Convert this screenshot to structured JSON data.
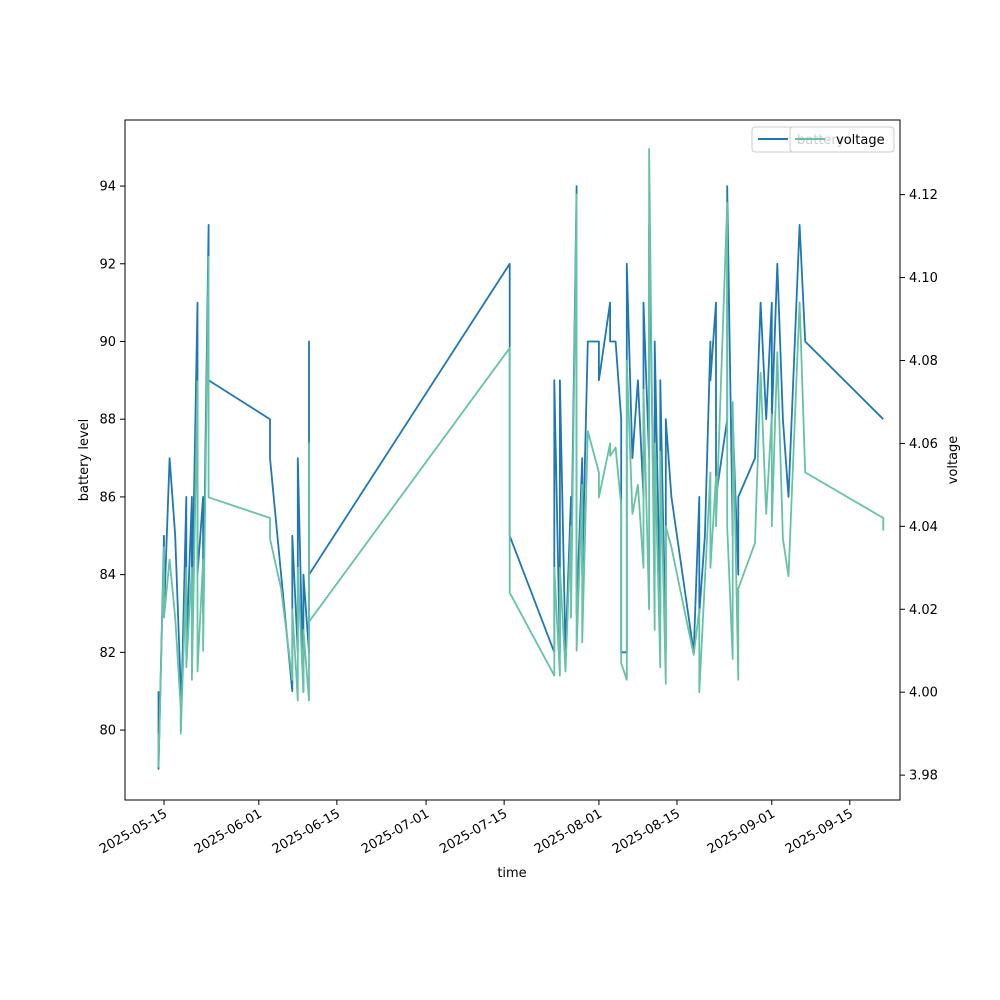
{
  "chart_data": {
    "type": "line",
    "xlabel": "time",
    "ylabel": "battery level",
    "y2label": "voltage",
    "xlim": [
      "2025-05-08",
      "2025-09-24"
    ],
    "ylim": [
      78.2,
      95.7
    ],
    "y2lim": [
      3.974,
      4.138
    ],
    "x_ticks": [
      "2025-05-15",
      "2025-06-01",
      "2025-06-15",
      "2025-07-01",
      "2025-07-15",
      "2025-08-01",
      "2025-08-15",
      "2025-09-01",
      "2025-09-15"
    ],
    "y_ticks": [
      "80",
      "82",
      "84",
      "86",
      "88",
      "90",
      "92",
      "94"
    ],
    "y2_ticks": [
      "3.98",
      "4.00",
      "4.02",
      "4.04",
      "4.06",
      "4.08",
      "4.10",
      "4.12"
    ],
    "legend_position": "upper right (two overlapping legends)",
    "series": [
      {
        "name": "battery",
        "axis": "left",
        "color": "#1f77b4",
        "points": [
          [
            "2025-05-14",
            81
          ],
          [
            "2025-05-14",
            79
          ],
          [
            "2025-05-15",
            85
          ],
          [
            "2025-05-15",
            83
          ],
          [
            "2025-05-16",
            87
          ],
          [
            "2025-05-17",
            85
          ],
          [
            "2025-05-18",
            81
          ],
          [
            "2025-05-18",
            80
          ],
          [
            "2025-05-19",
            86
          ],
          [
            "2025-05-19",
            82
          ],
          [
            "2025-05-20",
            86
          ],
          [
            "2025-05-20",
            83
          ],
          [
            "2025-05-21",
            91
          ],
          [
            "2025-05-21",
            84
          ],
          [
            "2025-05-22",
            86
          ],
          [
            "2025-05-22",
            83
          ],
          [
            "2025-05-23",
            93
          ],
          [
            "2025-05-23",
            89
          ],
          [
            "2025-06-03",
            88
          ],
          [
            "2025-06-03",
            87
          ],
          [
            "2025-06-05",
            84
          ],
          [
            "2025-06-07",
            81
          ],
          [
            "2025-06-07",
            85
          ],
          [
            "2025-06-08",
            82
          ],
          [
            "2025-06-08",
            87
          ],
          [
            "2025-06-09",
            81
          ],
          [
            "2025-06-09",
            84
          ],
          [
            "2025-06-10",
            82
          ],
          [
            "2025-06-10",
            90
          ],
          [
            "2025-06-10",
            84
          ],
          [
            "2025-07-16",
            92
          ],
          [
            "2025-07-16",
            85
          ],
          [
            "2025-07-24",
            82
          ],
          [
            "2025-07-24",
            89
          ],
          [
            "2025-07-25",
            82
          ],
          [
            "2025-07-25",
            89
          ],
          [
            "2025-07-26",
            82
          ],
          [
            "2025-07-27",
            86
          ],
          [
            "2025-07-27",
            84
          ],
          [
            "2025-07-28",
            94
          ],
          [
            "2025-07-28",
            83
          ],
          [
            "2025-07-29",
            87
          ],
          [
            "2025-07-29",
            84
          ],
          [
            "2025-07-30",
            90
          ],
          [
            "2025-08-01",
            90
          ],
          [
            "2025-08-01",
            89
          ],
          [
            "2025-08-03",
            91
          ],
          [
            "2025-08-03",
            90
          ],
          [
            "2025-08-04",
            90
          ],
          [
            "2025-08-05",
            88
          ],
          [
            "2025-08-05",
            82
          ],
          [
            "2025-08-06",
            82
          ],
          [
            "2025-08-06",
            92
          ],
          [
            "2025-08-07",
            87
          ],
          [
            "2025-08-08",
            89
          ],
          [
            "2025-08-09",
            86
          ],
          [
            "2025-08-09",
            91
          ],
          [
            "2025-08-10",
            87
          ],
          [
            "2025-08-10",
            93
          ],
          [
            "2025-08-11",
            84
          ],
          [
            "2025-08-11",
            90
          ],
          [
            "2025-08-12",
            83
          ],
          [
            "2025-08-12",
            89
          ],
          [
            "2025-08-13",
            82
          ],
          [
            "2025-08-13",
            88
          ],
          [
            "2025-08-14",
            86
          ],
          [
            "2025-08-18",
            82
          ],
          [
            "2025-08-19",
            86
          ],
          [
            "2025-08-19",
            83
          ],
          [
            "2025-08-20",
            85
          ],
          [
            "2025-08-21",
            90
          ],
          [
            "2025-08-21",
            89
          ],
          [
            "2025-08-22",
            91
          ],
          [
            "2025-08-22",
            86
          ],
          [
            "2025-08-24",
            88
          ],
          [
            "2025-08-24",
            94
          ],
          [
            "2025-08-25",
            85
          ],
          [
            "2025-08-25",
            88
          ],
          [
            "2025-08-26",
            84
          ],
          [
            "2025-08-26",
            86
          ],
          [
            "2025-08-29",
            87
          ],
          [
            "2025-08-30",
            91
          ],
          [
            "2025-08-31",
            88
          ],
          [
            "2025-09-01",
            91
          ],
          [
            "2025-09-01",
            88
          ],
          [
            "2025-09-02",
            92
          ],
          [
            "2025-09-03",
            88
          ],
          [
            "2025-09-04",
            86
          ],
          [
            "2025-09-06",
            93
          ],
          [
            "2025-09-07",
            90
          ],
          [
            "2025-09-21",
            88
          ]
        ]
      },
      {
        "name": "voltage",
        "axis": "right",
        "color": "#66c2a5",
        "points": [
          [
            "2025-05-14",
            3.99
          ],
          [
            "2025-05-14",
            3.982
          ],
          [
            "2025-05-15",
            4.035
          ],
          [
            "2025-05-15",
            4.018
          ],
          [
            "2025-05-16",
            4.032
          ],
          [
            "2025-05-17",
            4.018
          ],
          [
            "2025-05-18",
            3.996
          ],
          [
            "2025-05-18",
            3.99
          ],
          [
            "2025-05-19",
            4.03
          ],
          [
            "2025-05-19",
            4.006
          ],
          [
            "2025-05-20",
            4.03
          ],
          [
            "2025-05-20",
            4.003
          ],
          [
            "2025-05-21",
            4.075
          ],
          [
            "2025-05-21",
            4.005
          ],
          [
            "2025-05-22",
            4.032
          ],
          [
            "2025-05-22",
            4.01
          ],
          [
            "2025-05-23",
            4.105
          ],
          [
            "2025-05-23",
            4.047
          ],
          [
            "2025-06-03",
            4.042
          ],
          [
            "2025-06-03",
            4.037
          ],
          [
            "2025-06-05",
            4.025
          ],
          [
            "2025-06-07",
            4.003
          ],
          [
            "2025-06-07",
            4.02
          ],
          [
            "2025-06-08",
            3.998
          ],
          [
            "2025-06-08",
            4.03
          ],
          [
            "2025-06-09",
            4.0
          ],
          [
            "2025-06-09",
            4.015
          ],
          [
            "2025-06-10",
            3.998
          ],
          [
            "2025-06-10",
            4.06
          ],
          [
            "2025-06-10",
            4.017
          ],
          [
            "2025-07-16",
            4.083
          ],
          [
            "2025-07-16",
            4.024
          ],
          [
            "2025-07-24",
            4.004
          ],
          [
            "2025-07-24",
            4.03
          ],
          [
            "2025-07-25",
            4.004
          ],
          [
            "2025-07-25",
            4.03
          ],
          [
            "2025-07-26",
            4.005
          ],
          [
            "2025-07-27",
            4.04
          ],
          [
            "2025-07-27",
            4.018
          ],
          [
            "2025-07-28",
            4.12
          ],
          [
            "2025-07-28",
            4.01
          ],
          [
            "2025-07-29",
            4.05
          ],
          [
            "2025-07-29",
            4.012
          ],
          [
            "2025-07-30",
            4.063
          ],
          [
            "2025-08-01",
            4.053
          ],
          [
            "2025-08-01",
            4.047
          ],
          [
            "2025-08-03",
            4.06
          ],
          [
            "2025-08-03",
            4.057
          ],
          [
            "2025-08-04",
            4.059
          ],
          [
            "2025-08-05",
            4.045
          ],
          [
            "2025-08-05",
            4.007
          ],
          [
            "2025-08-06",
            4.003
          ],
          [
            "2025-08-06",
            4.08
          ],
          [
            "2025-08-07",
            4.043
          ],
          [
            "2025-08-08",
            4.05
          ],
          [
            "2025-08-09",
            4.03
          ],
          [
            "2025-08-09",
            4.073
          ],
          [
            "2025-08-10",
            4.02
          ],
          [
            "2025-08-10",
            4.131
          ],
          [
            "2025-08-11",
            4.015
          ],
          [
            "2025-08-11",
            4.06
          ],
          [
            "2025-08-12",
            4.006
          ],
          [
            "2025-08-12",
            4.058
          ],
          [
            "2025-08-13",
            4.002
          ],
          [
            "2025-08-13",
            4.04
          ],
          [
            "2025-08-14",
            4.035
          ],
          [
            "2025-08-18",
            4.009
          ],
          [
            "2025-08-19",
            4.02
          ],
          [
            "2025-08-19",
            4.0
          ],
          [
            "2025-08-20",
            4.027
          ],
          [
            "2025-08-21",
            4.053
          ],
          [
            "2025-08-21",
            4.03
          ],
          [
            "2025-08-22",
            4.052
          ],
          [
            "2025-08-22",
            4.04
          ],
          [
            "2025-08-24",
            4.118
          ],
          [
            "2025-08-24",
            4.04
          ],
          [
            "2025-08-25",
            4.008
          ],
          [
            "2025-08-25",
            4.07
          ],
          [
            "2025-08-26",
            4.003
          ],
          [
            "2025-08-26",
            4.025
          ],
          [
            "2025-08-29",
            4.036
          ],
          [
            "2025-08-30",
            4.077
          ],
          [
            "2025-08-31",
            4.043
          ],
          [
            "2025-09-01",
            4.067
          ],
          [
            "2025-09-01",
            4.04
          ],
          [
            "2025-09-02",
            4.082
          ],
          [
            "2025-09-03",
            4.037
          ],
          [
            "2025-09-04",
            4.028
          ],
          [
            "2025-09-06",
            4.094
          ],
          [
            "2025-09-07",
            4.053
          ],
          [
            "2025-09-21",
            4.042
          ],
          [
            "2025-09-21",
            4.039
          ]
        ]
      }
    ],
    "legend": {
      "left_axis": [
        "battery"
      ],
      "right_axis": [
        "voltage"
      ]
    }
  }
}
